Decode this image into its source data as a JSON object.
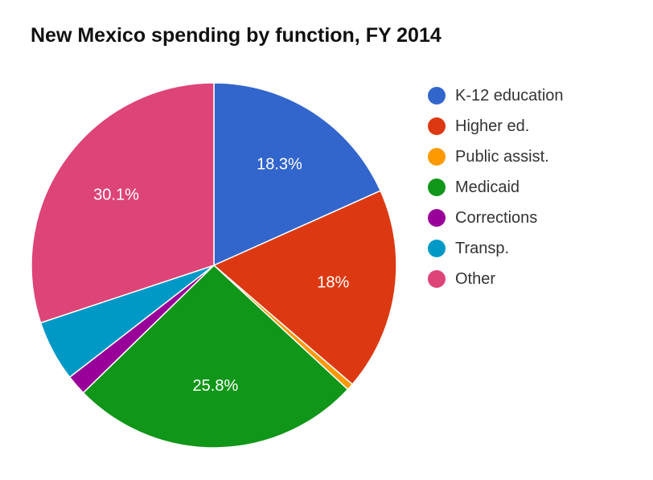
{
  "chart_data": {
    "type": "pie",
    "title": "New Mexico spending by function, FY 2014",
    "legend_position": "right",
    "slices": [
      {
        "label": "K-12 education",
        "value": 18.3,
        "data_label": "18.3%",
        "color": "#3366cc"
      },
      {
        "label": "Higher ed.",
        "value": 18.0,
        "data_label": "18%",
        "color": "#dc3912"
      },
      {
        "label": "Public assist.",
        "value": 0.6,
        "data_label": "",
        "color": "#ff9900"
      },
      {
        "label": "Medicaid",
        "value": 25.8,
        "data_label": "25.8%",
        "color": "#109618"
      },
      {
        "label": "Corrections",
        "value": 1.8,
        "data_label": "",
        "color": "#990099"
      },
      {
        "label": "Transp.",
        "value": 5.4,
        "data_label": "",
        "color": "#0099c6"
      },
      {
        "label": "Other",
        "value": 30.1,
        "data_label": "30.1%",
        "color": "#dd4477"
      }
    ]
  }
}
